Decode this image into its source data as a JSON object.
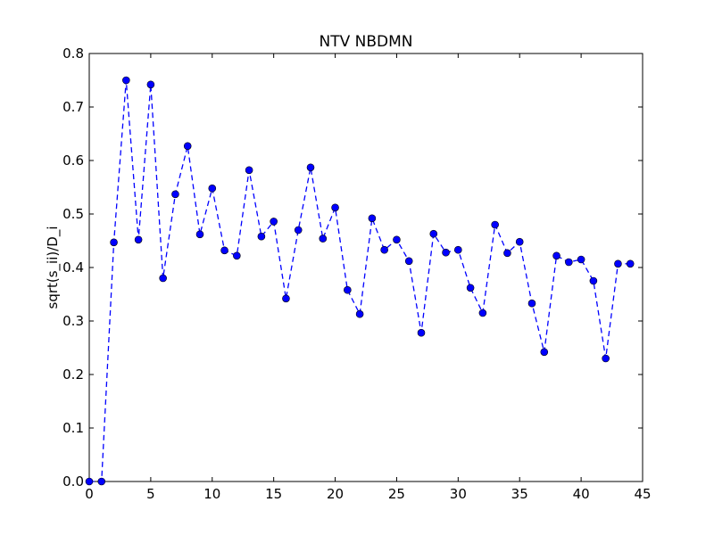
{
  "chart_data": {
    "type": "line",
    "title": "NTV NBDMN",
    "xlabel": "",
    "ylabel": "sqrt(s_ii)/D_i",
    "xlim": [
      0,
      45
    ],
    "ylim": [
      0,
      0.8
    ],
    "x_ticks": [
      0,
      5,
      10,
      15,
      20,
      25,
      30,
      35,
      40,
      45
    ],
    "y_ticks": [
      "0.0",
      "0.1",
      "0.2",
      "0.3",
      "0.4",
      "0.5",
      "0.6",
      "0.7",
      "0.8"
    ],
    "grid": false,
    "legend": "none",
    "line_style": "dashed",
    "marker": "circle",
    "color": "#0000ff",
    "series": [
      {
        "x": [
          0,
          1,
          2,
          3,
          4,
          5,
          6,
          7,
          8,
          9,
          10,
          11,
          12,
          13,
          14,
          15,
          16,
          17,
          18,
          19,
          20,
          21,
          22,
          23,
          24,
          25,
          26,
          27,
          28,
          29,
          30,
          31,
          32,
          33,
          34,
          35,
          36,
          37,
          38,
          39,
          40,
          41,
          42,
          43,
          44
        ],
        "y": [
          0.0,
          0.0,
          0.447,
          0.75,
          0.452,
          0.742,
          0.38,
          0.537,
          0.627,
          0.462,
          0.548,
          0.432,
          0.422,
          0.582,
          0.458,
          0.486,
          0.342,
          0.47,
          0.587,
          0.454,
          0.512,
          0.358,
          0.313,
          0.492,
          0.433,
          0.452,
          0.412,
          0.278,
          0.463,
          0.428,
          0.433,
          0.362,
          0.315,
          0.48,
          0.427,
          0.448,
          0.333,
          0.242,
          0.422,
          0.41,
          0.415,
          0.375,
          0.23,
          0.407,
          0.407
        ]
      }
    ]
  }
}
